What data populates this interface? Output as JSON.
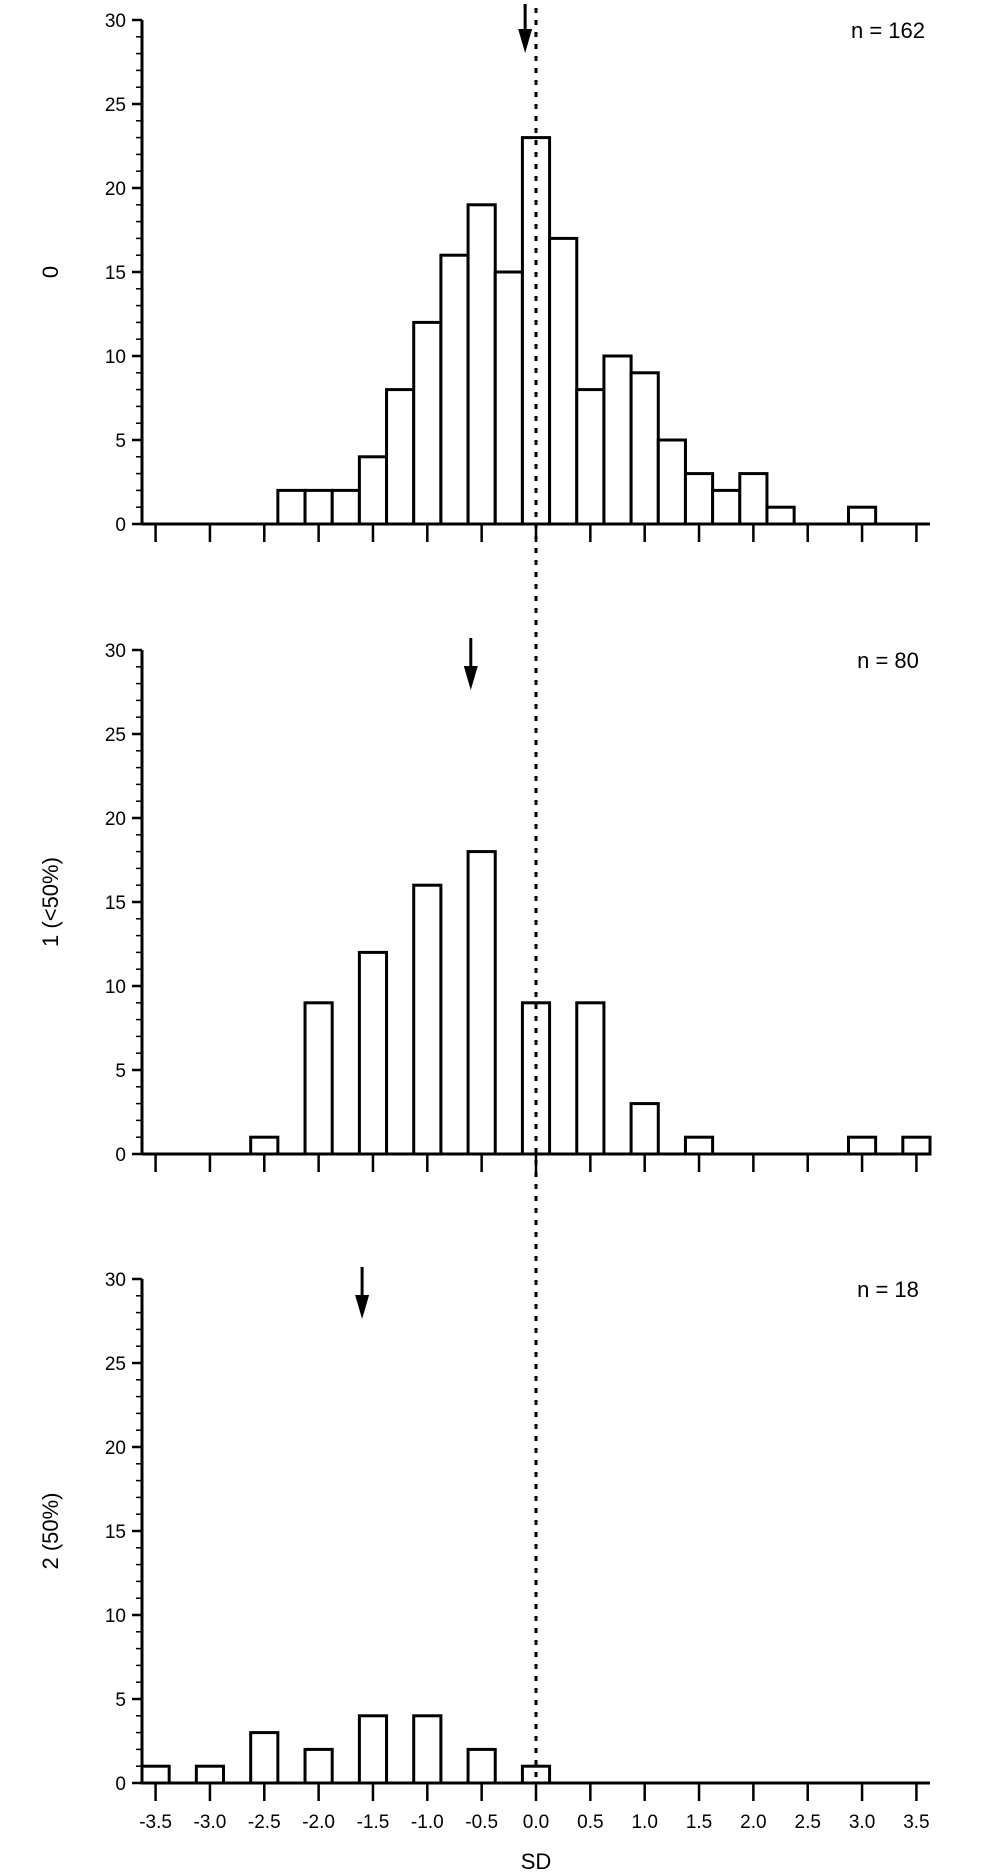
{
  "chart_data": {
    "type": "bar",
    "xlabel": "SD",
    "bin_width": 0.25,
    "x_tick_values": [
      -3.5,
      -3.0,
      -2.5,
      -2.0,
      -1.5,
      -1.0,
      -0.5,
      0.0,
      0.5,
      1.0,
      1.5,
      2.0,
      2.5,
      3.0,
      3.5
    ],
    "x_tick_labels": [
      "-3.5",
      "-3.0",
      "-2.5",
      "-2.0",
      "-1.5",
      "-1.0",
      "-0.5",
      "0.0",
      "0.5",
      "1.0",
      "1.5",
      "2.0",
      "2.5",
      "3.0",
      "3.5"
    ],
    "xlim": [
      -3.625,
      3.625
    ],
    "reference_line_x": 0.0,
    "panels": [
      {
        "ylabel": "0",
        "n_label": "n = 162",
        "ylim": [
          0,
          30
        ],
        "y_ticks": [
          "0",
          "5",
          "10",
          "15",
          "20",
          "25",
          "30"
        ],
        "arrow_x": -0.1,
        "bins": [
          {
            "x": -2.25,
            "count": 2
          },
          {
            "x": -2.0,
            "count": 2
          },
          {
            "x": -1.75,
            "count": 2
          },
          {
            "x": -1.5,
            "count": 4
          },
          {
            "x": -1.25,
            "count": 8
          },
          {
            "x": -1.0,
            "count": 12
          },
          {
            "x": -0.75,
            "count": 16
          },
          {
            "x": -0.5,
            "count": 19
          },
          {
            "x": -0.25,
            "count": 15
          },
          {
            "x": 0.0,
            "count": 23
          },
          {
            "x": 0.25,
            "count": 17
          },
          {
            "x": 0.5,
            "count": 8
          },
          {
            "x": 0.75,
            "count": 10
          },
          {
            "x": 1.0,
            "count": 9
          },
          {
            "x": 1.25,
            "count": 5
          },
          {
            "x": 1.5,
            "count": 3
          },
          {
            "x": 1.75,
            "count": 2
          },
          {
            "x": 2.0,
            "count": 3
          },
          {
            "x": 2.25,
            "count": 1
          },
          {
            "x": 3.0,
            "count": 1
          }
        ]
      },
      {
        "ylabel": "1 (<50%)",
        "n_label": "n = 80",
        "ylim": [
          0,
          30
        ],
        "y_ticks": [
          "0",
          "5",
          "10",
          "15",
          "20",
          "25",
          "30"
        ],
        "arrow_x": -0.6,
        "bins": [
          {
            "x": -2.5,
            "count": 1
          },
          {
            "x": -2.0,
            "count": 9
          },
          {
            "x": -1.5,
            "count": 12
          },
          {
            "x": -1.0,
            "count": 16
          },
          {
            "x": -0.5,
            "count": 18
          },
          {
            "x": 0.0,
            "count": 9
          },
          {
            "x": 0.5,
            "count": 9
          },
          {
            "x": 1.0,
            "count": 3
          },
          {
            "x": 1.5,
            "count": 1
          },
          {
            "x": 3.0,
            "count": 1
          },
          {
            "x": 3.5,
            "count": 1
          }
        ]
      },
      {
        "ylabel": "2 (50%)",
        "n_label": "n = 18",
        "ylim": [
          0,
          30
        ],
        "y_ticks": [
          "0",
          "5",
          "10",
          "15",
          "20",
          "25",
          "30"
        ],
        "arrow_x": -1.6,
        "bins": [
          {
            "x": -3.5,
            "count": 1
          },
          {
            "x": -3.0,
            "count": 1
          },
          {
            "x": -2.5,
            "count": 3
          },
          {
            "x": -2.0,
            "count": 2
          },
          {
            "x": -1.5,
            "count": 4
          },
          {
            "x": -1.0,
            "count": 4
          },
          {
            "x": -0.5,
            "count": 2
          },
          {
            "x": 0.0,
            "count": 1
          }
        ]
      }
    ]
  }
}
